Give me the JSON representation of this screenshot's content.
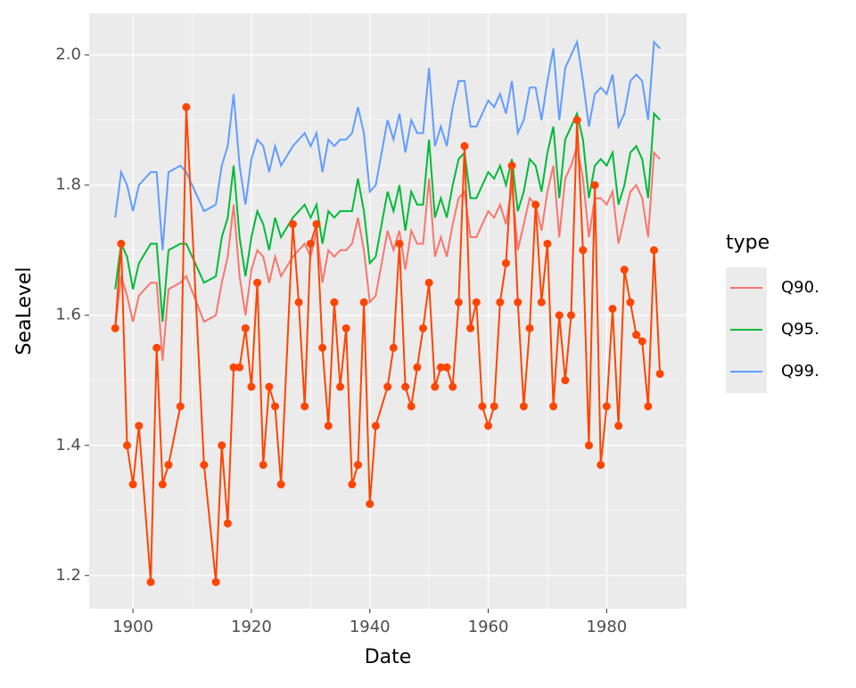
{
  "chart_data": {
    "type": "line",
    "x_label": "Date",
    "y_label": "SeaLevel",
    "legend_title": "type",
    "legend_position": "right",
    "grid": true,
    "background": "#ebebeb",
    "xlim": [
      1892.6,
      1993.5
    ],
    "ylim": [
      1.149,
      2.064
    ],
    "xticks": [
      1900,
      1920,
      1940,
      1960,
      1980
    ],
    "yticks": [
      1.2,
      1.4,
      1.6,
      1.8,
      {
        "value": 2.0,
        "label": "2.0"
      }
    ],
    "x": [
      1897,
      1898,
      1899,
      1900,
      1901,
      1903,
      1904,
      1905,
      1906,
      1908,
      1909,
      1912,
      1914,
      1915,
      1916,
      1917,
      1918,
      1919,
      1920,
      1921,
      1922,
      1923,
      1924,
      1925,
      1927,
      1928,
      1929,
      1930,
      1931,
      1932,
      1933,
      1934,
      1935,
      1936,
      1937,
      1938,
      1939,
      1940,
      1941,
      1943,
      1944,
      1945,
      1946,
      1947,
      1948,
      1949,
      1950,
      1951,
      1952,
      1953,
      1954,
      1955,
      1956,
      1957,
      1958,
      1959,
      1960,
      1961,
      1962,
      1963,
      1964,
      1965,
      1966,
      1967,
      1968,
      1969,
      1970,
      1971,
      1972,
      1973,
      1974,
      1975,
      1976,
      1977,
      1978,
      1979,
      1980,
      1981,
      1982,
      1983,
      1984,
      1985,
      1986,
      1987,
      1988,
      1989
    ],
    "series": [
      {
        "name": "Q90.",
        "color": "#f8766d",
        "values": [
          1.58,
          1.66,
          1.63,
          1.59,
          1.63,
          1.65,
          1.65,
          1.53,
          1.64,
          1.65,
          1.66,
          1.59,
          1.6,
          1.65,
          1.69,
          1.77,
          1.66,
          1.6,
          1.67,
          1.7,
          1.69,
          1.65,
          1.69,
          1.66,
          1.69,
          1.7,
          1.71,
          1.69,
          1.73,
          1.65,
          1.7,
          1.69,
          1.7,
          1.7,
          1.71,
          1.75,
          1.7,
          1.62,
          1.63,
          1.73,
          1.7,
          1.73,
          1.67,
          1.73,
          1.71,
          1.71,
          1.81,
          1.69,
          1.72,
          1.69,
          1.74,
          1.78,
          1.79,
          1.72,
          1.72,
          1.74,
          1.76,
          1.75,
          1.77,
          1.74,
          1.8,
          1.7,
          1.74,
          1.78,
          1.77,
          1.73,
          1.79,
          1.83,
          1.72,
          1.81,
          1.83,
          1.86,
          1.81,
          1.72,
          1.78,
          1.78,
          1.77,
          1.79,
          1.71,
          1.75,
          1.79,
          1.8,
          1.78,
          1.72,
          1.85,
          1.84
        ]
      },
      {
        "name": "Q95.",
        "color": "#00ba38",
        "values": [
          1.64,
          1.71,
          1.69,
          1.64,
          1.68,
          1.71,
          1.71,
          1.59,
          1.7,
          1.71,
          1.71,
          1.65,
          1.66,
          1.72,
          1.75,
          1.83,
          1.72,
          1.66,
          1.72,
          1.76,
          1.74,
          1.7,
          1.75,
          1.72,
          1.75,
          1.76,
          1.77,
          1.75,
          1.77,
          1.71,
          1.76,
          1.75,
          1.76,
          1.76,
          1.76,
          1.81,
          1.76,
          1.68,
          1.69,
          1.79,
          1.76,
          1.8,
          1.73,
          1.79,
          1.77,
          1.77,
          1.87,
          1.75,
          1.78,
          1.75,
          1.8,
          1.84,
          1.85,
          1.78,
          1.78,
          1.8,
          1.82,
          1.81,
          1.83,
          1.8,
          1.84,
          1.76,
          1.79,
          1.84,
          1.83,
          1.79,
          1.85,
          1.89,
          1.78,
          1.87,
          1.89,
          1.91,
          1.87,
          1.78,
          1.83,
          1.84,
          1.83,
          1.85,
          1.77,
          1.8,
          1.85,
          1.86,
          1.84,
          1.78,
          1.91,
          1.9
        ]
      },
      {
        "name": "Q99.",
        "color": "#619cff",
        "values": [
          1.75,
          1.82,
          1.8,
          1.76,
          1.8,
          1.82,
          1.82,
          1.7,
          1.82,
          1.83,
          1.82,
          1.76,
          1.77,
          1.83,
          1.86,
          1.94,
          1.83,
          1.77,
          1.84,
          1.87,
          1.86,
          1.82,
          1.86,
          1.83,
          1.86,
          1.87,
          1.88,
          1.86,
          1.88,
          1.82,
          1.87,
          1.86,
          1.87,
          1.87,
          1.88,
          1.92,
          1.88,
          1.79,
          1.8,
          1.9,
          1.87,
          1.91,
          1.85,
          1.9,
          1.88,
          1.88,
          1.98,
          1.86,
          1.89,
          1.86,
          1.92,
          1.96,
          1.96,
          1.89,
          1.89,
          1.91,
          1.93,
          1.92,
          1.94,
          1.91,
          1.96,
          1.88,
          1.9,
          1.95,
          1.95,
          1.9,
          1.96,
          2.01,
          1.9,
          1.98,
          2.0,
          2.02,
          1.96,
          1.89,
          1.94,
          1.95,
          1.94,
          1.97,
          1.89,
          1.91,
          1.96,
          1.97,
          1.96,
          1.9,
          2.02,
          2.01
        ]
      },
      {
        "color": "#ff4500",
        "markers": true,
        "values": [
          1.58,
          1.71,
          1.4,
          1.34,
          1.43,
          1.19,
          1.55,
          1.34,
          1.37,
          1.46,
          1.92,
          1.37,
          1.19,
          1.4,
          1.28,
          1.52,
          1.52,
          1.58,
          1.49,
          1.65,
          1.37,
          1.49,
          1.46,
          1.34,
          1.74,
          1.62,
          1.46,
          1.71,
          1.74,
          1.55,
          1.43,
          1.62,
          1.49,
          1.58,
          1.34,
          1.37,
          1.62,
          1.31,
          1.43,
          1.49,
          1.55,
          1.71,
          1.49,
          1.46,
          1.52,
          1.58,
          1.65,
          1.49,
          1.52,
          1.52,
          1.49,
          1.62,
          1.86,
          1.58,
          1.62,
          1.46,
          1.43,
          1.46,
          1.62,
          1.68,
          1.83,
          1.62,
          1.46,
          1.58,
          1.77,
          1.62,
          1.71,
          1.46,
          1.6,
          1.5,
          1.6,
          1.9,
          1.7,
          1.4,
          1.8,
          1.37,
          1.46,
          1.61,
          1.43,
          1.67,
          1.62,
          1.57,
          1.56,
          1.46,
          1.7,
          1.51
        ]
      }
    ]
  }
}
